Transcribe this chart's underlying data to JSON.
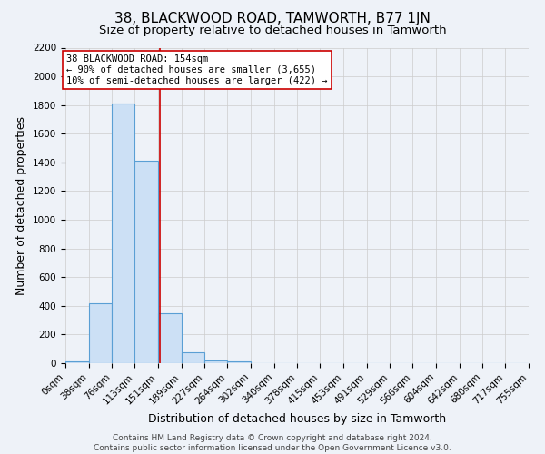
{
  "title": "38, BLACKWOOD ROAD, TAMWORTH, B77 1JN",
  "subtitle": "Size of property relative to detached houses in Tamworth",
  "xlabel": "Distribution of detached houses by size in Tamworth",
  "ylabel": "Number of detached properties",
  "bin_edges": [
    0,
    38,
    76,
    113,
    151,
    189,
    227,
    264,
    302,
    340,
    378,
    415,
    453,
    491,
    529,
    566,
    604,
    642,
    680,
    717,
    755
  ],
  "bin_labels": [
    "0sqm",
    "38sqm",
    "76sqm",
    "113sqm",
    "151sqm",
    "189sqm",
    "227sqm",
    "264sqm",
    "302sqm",
    "340sqm",
    "378sqm",
    "415sqm",
    "453sqm",
    "491sqm",
    "529sqm",
    "566sqm",
    "604sqm",
    "642sqm",
    "680sqm",
    "717sqm",
    "755sqm"
  ],
  "counts": [
    10,
    420,
    1810,
    1410,
    350,
    75,
    20,
    10,
    0,
    0,
    0,
    0,
    0,
    0,
    0,
    0,
    0,
    0,
    0,
    0
  ],
  "bar_facecolor": "#cce0f5",
  "bar_edgecolor": "#5a9fd4",
  "grid_color": "#cccccc",
  "background_color": "#eef2f8",
  "vline_x": 154,
  "vline_color": "#cc0000",
  "ylim": [
    0,
    2200
  ],
  "yticks": [
    0,
    200,
    400,
    600,
    800,
    1000,
    1200,
    1400,
    1600,
    1800,
    2000,
    2200
  ],
  "annotation_title": "38 BLACKWOOD ROAD: 154sqm",
  "annotation_line1": "← 90% of detached houses are smaller (3,655)",
  "annotation_line2": "10% of semi-detached houses are larger (422) →",
  "footer_line1": "Contains HM Land Registry data © Crown copyright and database right 2024.",
  "footer_line2": "Contains public sector information licensed under the Open Government Licence v3.0.",
  "title_fontsize": 11,
  "subtitle_fontsize": 9.5,
  "axis_label_fontsize": 9,
  "tick_fontsize": 7.5,
  "annotation_fontsize": 7.5,
  "footer_fontsize": 6.5
}
